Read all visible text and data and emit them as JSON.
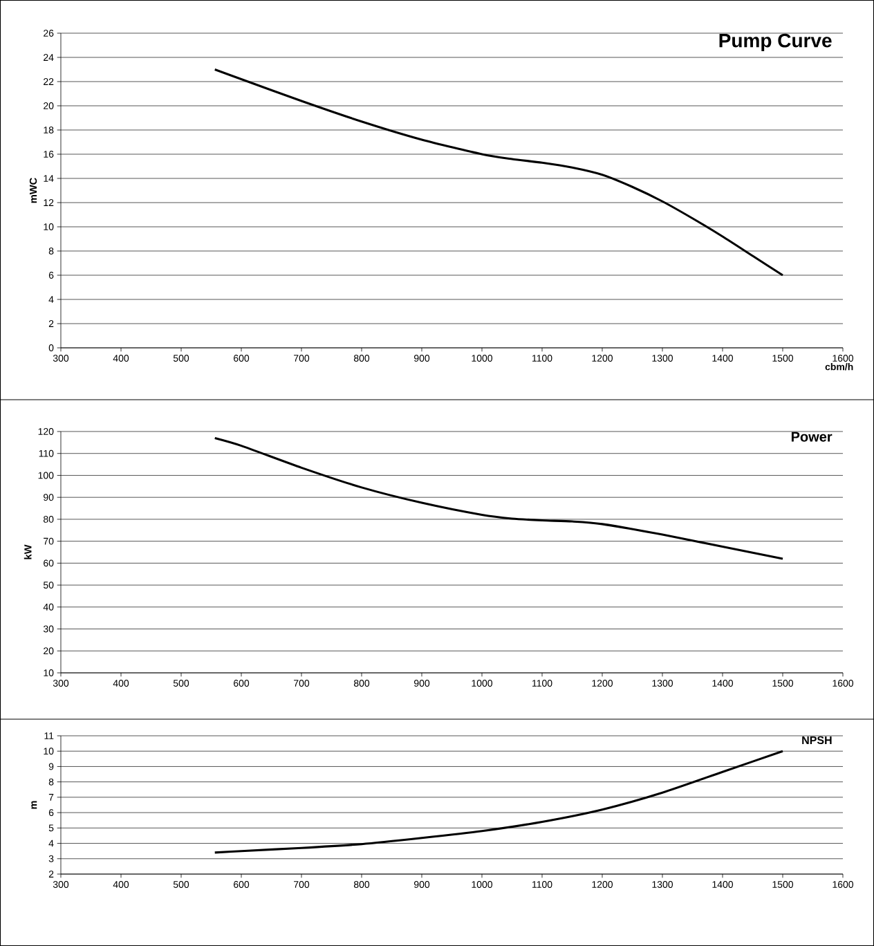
{
  "chart_data": [
    {
      "type": "line",
      "title": "Pump Curve",
      "ylabel": "mWC",
      "xlabel": "cbm/h",
      "x": [
        556,
        600,
        700,
        800,
        900,
        1000,
        1050,
        1100,
        1150,
        1200,
        1250,
        1300,
        1350,
        1400,
        1450,
        1500
      ],
      "values": [
        23,
        22.2,
        20.4,
        18.7,
        17.2,
        16.0,
        15.6,
        15.3,
        14.9,
        14.3,
        13.3,
        12.1,
        10.7,
        9.2,
        7.6,
        6.0
      ],
      "color": "#000000",
      "xlim": [
        300,
        1600
      ],
      "xticks": [
        300,
        400,
        500,
        600,
        700,
        800,
        900,
        1000,
        1100,
        1200,
        1300,
        1400,
        1500,
        1600
      ],
      "ylim": [
        0,
        26
      ],
      "yticks": [
        0,
        2,
        4,
        6,
        8,
        10,
        12,
        14,
        16,
        18,
        20,
        22,
        24,
        26
      ],
      "grid": "y"
    },
    {
      "type": "line",
      "title": "Power",
      "ylabel": "kW",
      "x": [
        556,
        600,
        700,
        800,
        900,
        1000,
        1050,
        1100,
        1150,
        1200,
        1300,
        1400,
        1500
      ],
      "values": [
        117,
        113.5,
        103.5,
        94.5,
        87.5,
        82,
        80.3,
        79.5,
        79,
        77.8,
        73,
        67.5,
        62
      ],
      "color": "#000000",
      "xlim": [
        300,
        1600
      ],
      "xticks": [
        300,
        400,
        500,
        600,
        700,
        800,
        900,
        1000,
        1100,
        1200,
        1300,
        1400,
        1500,
        1600
      ],
      "ylim": [
        10,
        120
      ],
      "yticks": [
        10,
        20,
        30,
        40,
        50,
        60,
        70,
        80,
        90,
        100,
        110,
        120
      ],
      "grid": "y"
    },
    {
      "type": "line",
      "title": "NPSH",
      "ylabel": "m",
      "x": [
        556,
        600,
        700,
        800,
        900,
        1000,
        1100,
        1200,
        1300,
        1400,
        1500
      ],
      "values": [
        3.4,
        3.5,
        3.7,
        3.95,
        4.35,
        4.8,
        5.4,
        6.2,
        7.3,
        8.65,
        10
      ],
      "color": "#000000",
      "xlim": [
        300,
        1600
      ],
      "xticks": [
        300,
        400,
        500,
        600,
        700,
        800,
        900,
        1000,
        1100,
        1200,
        1300,
        1400,
        1500,
        1600
      ],
      "ylim": [
        2,
        11
      ],
      "yticks": [
        2,
        3,
        4,
        5,
        6,
        7,
        8,
        9,
        10,
        11
      ],
      "grid": "y"
    }
  ]
}
